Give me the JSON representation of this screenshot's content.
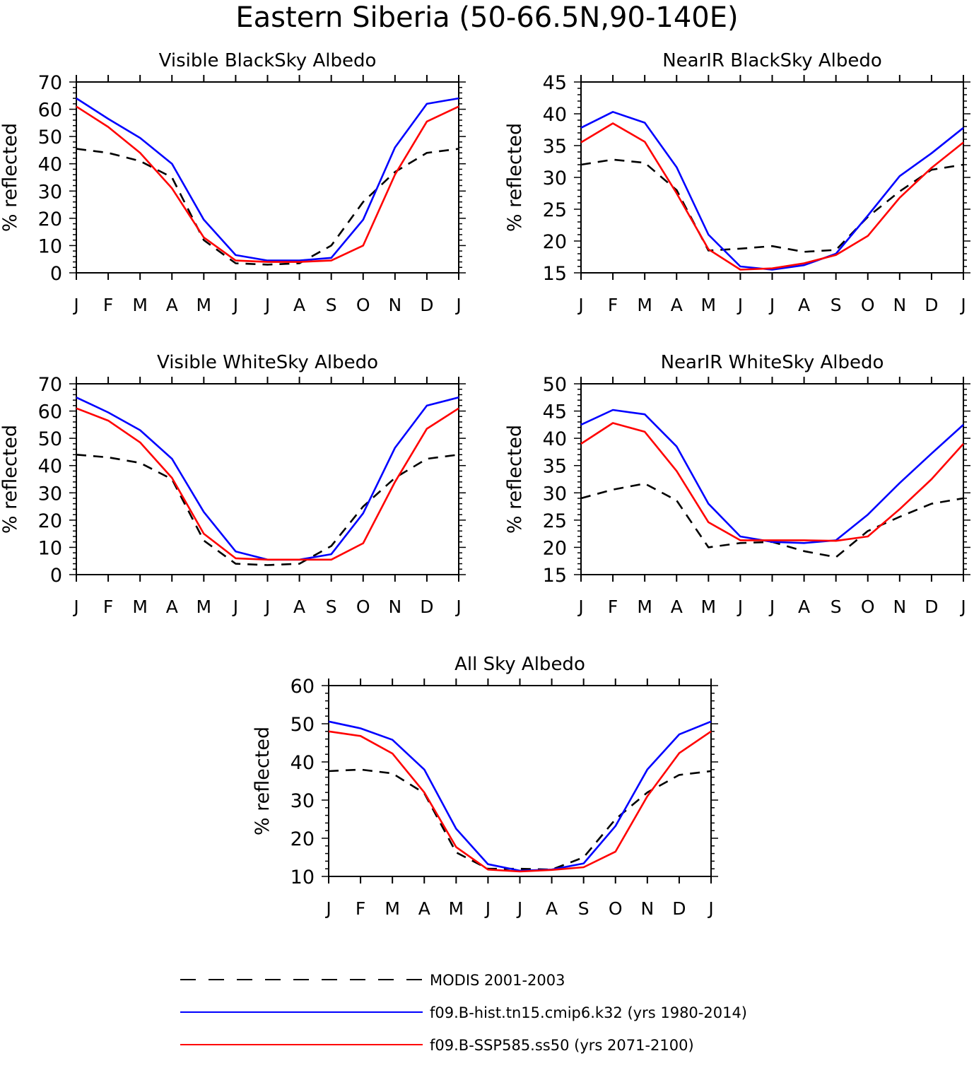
{
  "figure": {
    "title": "Eastern Siberia (50-66.5N,90-140E)"
  },
  "colors": {
    "modis": "#000000",
    "hist": "#0000ff",
    "ssp": "#ff0000"
  },
  "chart_data": [
    {
      "type": "line",
      "title": "Visible BlackSky Albedo",
      "ylabel": "% reflected",
      "xlabel": "",
      "categories": [
        "J",
        "F",
        "M",
        "A",
        "M",
        "J",
        "J",
        "A",
        "S",
        "O",
        "N",
        "D",
        "J"
      ],
      "ylim": [
        0,
        70
      ],
      "yticks": [
        0,
        10,
        20,
        30,
        40,
        50,
        60,
        70
      ],
      "series": [
        {
          "name": "MODIS 2001-2003",
          "values": [
            45.5,
            44,
            41,
            35,
            12,
            3.5,
            3,
            3.5,
            10,
            26,
            37,
            44,
            45.5
          ]
        },
        {
          "name": "f09.B-hist.tn15.cmip6.k32 (yrs 1980-2014)",
          "values": [
            64,
            56.5,
            49.5,
            40,
            19.5,
            6.5,
            4.5,
            4.5,
            5.5,
            19.5,
            46,
            62,
            64
          ]
        },
        {
          "name": "f09.B-SSP585.ss50 (yrs 2071-2100)",
          "values": [
            61,
            53.5,
            44,
            31,
            13,
            4.5,
            4,
            4,
            4.5,
            10,
            36,
            55.5,
            61
          ]
        }
      ]
    },
    {
      "type": "line",
      "title": "NearIR BlackSky Albedo",
      "ylabel": "% reflected",
      "xlabel": "",
      "categories": [
        "J",
        "F",
        "M",
        "A",
        "M",
        "J",
        "J",
        "A",
        "S",
        "O",
        "N",
        "D",
        "J"
      ],
      "ylim": [
        15,
        45
      ],
      "yticks": [
        15,
        20,
        25,
        30,
        35,
        40,
        45
      ],
      "series": [
        {
          "name": "MODIS 2001-2003",
          "values": [
            32,
            32.8,
            32.3,
            28,
            18.5,
            18.8,
            19.2,
            18.3,
            18.6,
            23.8,
            27.8,
            31.2,
            32
          ]
        },
        {
          "name": "f09.B-hist.tn15.cmip6.k32 (yrs 1980-2014)",
          "values": [
            37.8,
            40.3,
            38.6,
            31.6,
            21,
            16,
            15.5,
            16.2,
            18,
            24,
            30.2,
            33.8,
            37.8
          ]
        },
        {
          "name": "f09.B-SSP585.ss50 (yrs 2071-2100)",
          "values": [
            35.5,
            38.5,
            35.6,
            27.5,
            18.7,
            15.5,
            15.7,
            16.5,
            17.8,
            20.8,
            26.8,
            31.5,
            35.5
          ]
        }
      ]
    },
    {
      "type": "line",
      "title": "Visible WhiteSky Albedo",
      "ylabel": "% reflected",
      "xlabel": "",
      "categories": [
        "J",
        "F",
        "M",
        "A",
        "M",
        "J",
        "J",
        "A",
        "S",
        "O",
        "N",
        "D",
        "J"
      ],
      "ylim": [
        0,
        70
      ],
      "yticks": [
        0,
        10,
        20,
        30,
        40,
        50,
        60,
        70
      ],
      "series": [
        {
          "name": "MODIS 2001-2003",
          "values": [
            44,
            43,
            41,
            35,
            12.5,
            4,
            3.5,
            4,
            10.5,
            25,
            35.5,
            42.5,
            44
          ]
        },
        {
          "name": "f09.B-hist.tn15.cmip6.k32 (yrs 1980-2014)",
          "values": [
            65,
            59.5,
            53,
            42.5,
            23,
            8.5,
            5.5,
            5.5,
            7.5,
            22.5,
            46.5,
            62,
            65
          ]
        },
        {
          "name": "f09.B-SSP585.ss50 (yrs 2071-2100)",
          "values": [
            61,
            56.5,
            48.5,
            35.5,
            15,
            6,
            5.5,
            5.5,
            5.5,
            11.5,
            34,
            53.5,
            61
          ]
        }
      ]
    },
    {
      "type": "line",
      "title": "NearIR WhiteSky Albedo",
      "ylabel": "% reflected",
      "xlabel": "",
      "categories": [
        "J",
        "F",
        "M",
        "A",
        "M",
        "J",
        "J",
        "A",
        "S",
        "O",
        "N",
        "D",
        "J"
      ],
      "ylim": [
        15,
        50
      ],
      "yticks": [
        15,
        20,
        25,
        30,
        35,
        40,
        45,
        50
      ],
      "series": [
        {
          "name": "MODIS 2001-2003",
          "values": [
            29,
            30.6,
            31.7,
            28.6,
            20,
            20.8,
            21,
            19.3,
            18.2,
            23,
            25.6,
            28,
            29
          ]
        },
        {
          "name": "f09.B-hist.tn15.cmip6.k32 (yrs 1980-2014)",
          "values": [
            42.5,
            45.2,
            44.4,
            38.5,
            28,
            22,
            21,
            20.8,
            21.3,
            26,
            31.8,
            37.2,
            42.5
          ]
        },
        {
          "name": "f09.B-SSP585.ss50 (yrs 2071-2100)",
          "values": [
            39,
            42.8,
            41.2,
            34,
            24.6,
            21.3,
            21.3,
            21.3,
            21.2,
            22,
            27,
            32.5,
            39
          ]
        }
      ]
    },
    {
      "type": "line",
      "title": "All Sky Albedo",
      "ylabel": "% reflected",
      "xlabel": "",
      "categories": [
        "J",
        "F",
        "M",
        "A",
        "M",
        "J",
        "J",
        "A",
        "S",
        "O",
        "N",
        "D",
        "J"
      ],
      "ylim": [
        10,
        60
      ],
      "yticks": [
        10,
        20,
        30,
        40,
        50,
        60
      ],
      "series": [
        {
          "name": "MODIS 2001-2003",
          "values": [
            37.6,
            38,
            37,
            31.8,
            16.3,
            12,
            12,
            11.8,
            15,
            25,
            32,
            36.6,
            37.6
          ]
        },
        {
          "name": "f09.B-hist.tn15.cmip6.k32 (yrs 1980-2014)",
          "values": [
            50.6,
            48.8,
            45.8,
            38,
            22.5,
            13.2,
            11.5,
            11.8,
            13.4,
            23.2,
            38,
            47.2,
            50.6
          ]
        },
        {
          "name": "f09.B-SSP585.ss50 (yrs 2071-2100)",
          "values": [
            48,
            46.8,
            42.2,
            32,
            17.7,
            11.8,
            11.3,
            11.7,
            12.4,
            16.5,
            31,
            42.3,
            48
          ]
        }
      ]
    }
  ],
  "legend": {
    "placement": "bottom-center",
    "entries": [
      {
        "label": "MODIS 2001-2003",
        "style": "dashed",
        "color_key": "modis"
      },
      {
        "label": "f09.B-hist.tn15.cmip6.k32 (yrs 1980-2014)",
        "style": "solid",
        "color_key": "hist"
      },
      {
        "label": "f09.B-SSP585.ss50 (yrs 2071-2100)",
        "style": "solid",
        "color_key": "ssp"
      }
    ]
  }
}
